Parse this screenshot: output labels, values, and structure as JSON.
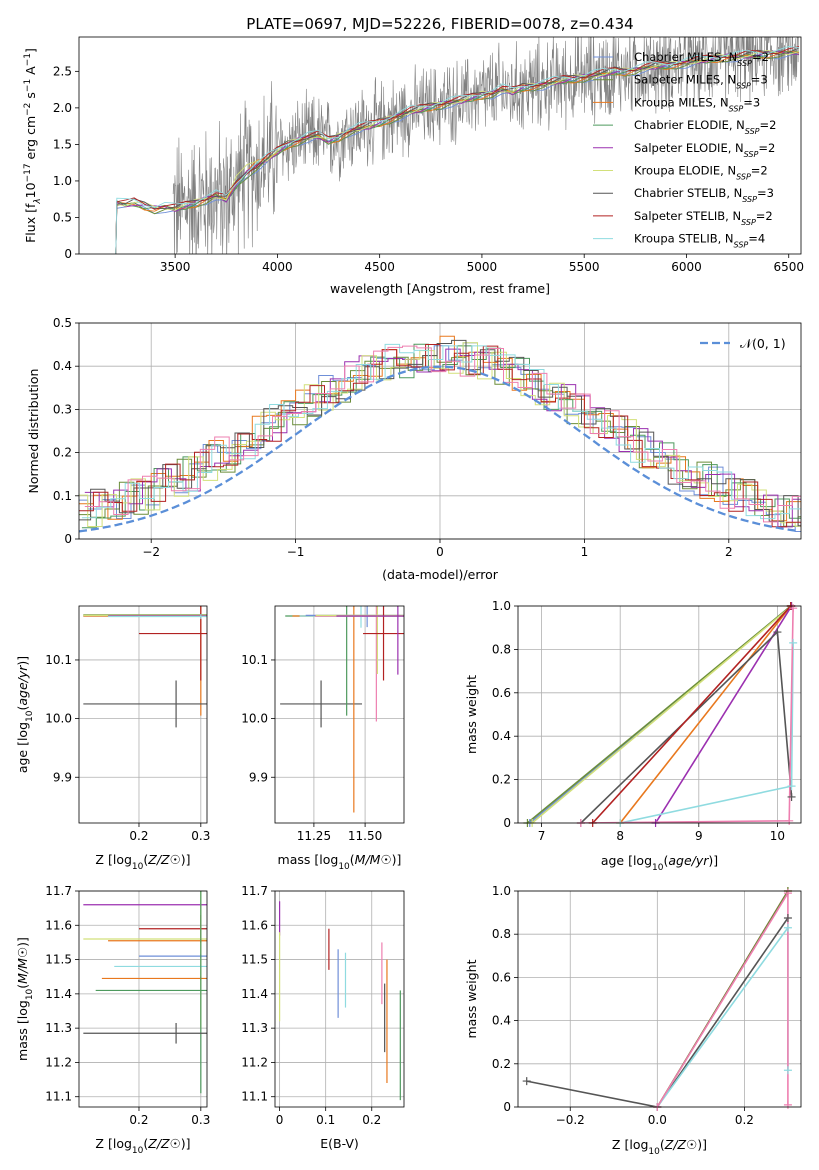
{
  "figure": {
    "title": "PLATE=0697, MJD=52226, FIBERID=0078, z=0.434"
  },
  "colors": {
    "chabrier_miles": "#6f8fd8",
    "salpeter_miles": "#6b8e3a",
    "kroupa_miles": "#e8781e",
    "chabrier_elodie": "#4e9a5e",
    "salpeter_elodie": "#9b30b0",
    "kroupa_elodie": "#d2e07a",
    "chabrier_stelib": "#555555",
    "salpeter_stelib": "#b22222",
    "kroupa_stelib": "#8fdbe0",
    "pink": "#ee7fb0",
    "data_gray": "#808080",
    "normal_curve": "#5b8fd8"
  },
  "chart_data": [
    {
      "id": "spectrum",
      "type": "line",
      "xlabel": "wavelength [Angstrom, rest frame]",
      "ylabel_parts": [
        "Flux [f",
        "λ",
        "10",
        "−17",
        " erg cm",
        "−2",
        " s",
        "−1",
        " A",
        "−1",
        "]"
      ],
      "xlim": [
        3030,
        6560
      ],
      "ylim": [
        0,
        2.97
      ],
      "xticks": [
        3500,
        4000,
        4500,
        5000,
        5500,
        6000,
        6500
      ],
      "yticks": [
        0.0,
        0.5,
        1.0,
        1.5,
        2.0,
        2.5
      ],
      "grid": false,
      "legend_position": "top-right",
      "legend": [
        {
          "name": "Chabrier MILES, N",
          "sub": "SSP",
          "val": "=2",
          "color_key": "chabrier_miles"
        },
        {
          "name": "Salpeter MILES, N",
          "sub": "SSP",
          "val": "=3",
          "color_key": "salpeter_miles"
        },
        {
          "name": "Kroupa MILES, N",
          "sub": "SSP",
          "val": "=3",
          "color_key": "kroupa_miles"
        },
        {
          "name": "Chabrier ELODIE, N",
          "sub": "SSP",
          "val": "=2",
          "color_key": "chabrier_elodie"
        },
        {
          "name": "Salpeter ELODIE, N",
          "sub": "SSP",
          "val": "=2",
          "color_key": "salpeter_elodie"
        },
        {
          "name": "Kroupa ELODIE, N",
          "sub": "SSP",
          "val": "=2",
          "color_key": "kroupa_elodie"
        },
        {
          "name": "Chabrier STELIB, N",
          "sub": "SSP",
          "val": "=3",
          "color_key": "chabrier_stelib"
        },
        {
          "name": "Salpeter STELIB, N",
          "sub": "SSP",
          "val": "=2",
          "color_key": "salpeter_stelib"
        },
        {
          "name": "Kroupa STELIB, N",
          "sub": "SSP",
          "val": "=4",
          "color_key": "kroupa_stelib"
        }
      ],
      "model_continuum": [
        [
          3210,
          0.0
        ],
        [
          3215,
          0.7
        ],
        [
          3260,
          0.68
        ],
        [
          3300,
          0.7
        ],
        [
          3350,
          0.66
        ],
        [
          3400,
          0.62
        ],
        [
          3450,
          0.64
        ],
        [
          3500,
          0.62
        ],
        [
          3550,
          0.66
        ],
        [
          3600,
          0.7
        ],
        [
          3650,
          0.75
        ],
        [
          3700,
          0.8
        ],
        [
          3750,
          0.75
        ],
        [
          3800,
          0.95
        ],
        [
          3850,
          1.1
        ],
        [
          3900,
          1.2
        ],
        [
          3950,
          1.3
        ],
        [
          4000,
          1.4
        ],
        [
          4050,
          1.5
        ],
        [
          4100,
          1.55
        ],
        [
          4150,
          1.6
        ],
        [
          4200,
          1.62
        ],
        [
          4250,
          1.55
        ],
        [
          4300,
          1.6
        ],
        [
          4350,
          1.68
        ],
        [
          4400,
          1.72
        ],
        [
          4450,
          1.75
        ],
        [
          4500,
          1.8
        ],
        [
          4550,
          1.85
        ],
        [
          4600,
          1.9
        ],
        [
          4650,
          1.95
        ],
        [
          4700,
          1.98
        ],
        [
          4750,
          2.02
        ],
        [
          4800,
          2.05
        ],
        [
          4850,
          2.08
        ],
        [
          4900,
          2.1
        ],
        [
          4950,
          2.14
        ],
        [
          5000,
          2.18
        ],
        [
          5050,
          2.2
        ],
        [
          5100,
          2.25
        ],
        [
          5150,
          2.22
        ],
        [
          5200,
          2.28
        ],
        [
          5250,
          2.3
        ],
        [
          5300,
          2.32
        ],
        [
          5350,
          2.35
        ],
        [
          5400,
          2.38
        ],
        [
          5450,
          2.4
        ],
        [
          5500,
          2.42
        ],
        [
          5550,
          2.45
        ],
        [
          5600,
          2.47
        ],
        [
          5650,
          2.5
        ],
        [
          5700,
          2.5
        ],
        [
          5750,
          2.52
        ],
        [
          5800,
          2.55
        ],
        [
          5850,
          2.57
        ],
        [
          5900,
          2.58
        ],
        [
          5950,
          2.6
        ],
        [
          6000,
          2.62
        ],
        [
          6050,
          2.64
        ],
        [
          6100,
          2.66
        ],
        [
          6150,
          2.68
        ],
        [
          6200,
          2.7
        ],
        [
          6250,
          2.7
        ],
        [
          6300,
          2.72
        ],
        [
          6350,
          2.73
        ],
        [
          6400,
          2.74
        ],
        [
          6450,
          2.75
        ],
        [
          6500,
          2.76
        ],
        [
          6550,
          2.77
        ]
      ],
      "data_start": 3490,
      "data_end": 6550
    },
    {
      "id": "residuals",
      "type": "line",
      "xlabel": "(data-model)/error",
      "ylabel": "Normed distribution",
      "xlim": [
        -2.5,
        2.5
      ],
      "ylim": [
        0,
        0.5
      ],
      "xticks": [
        -2,
        -1,
        0,
        1,
        2
      ],
      "xtick_labels": [
        "−2",
        "−1",
        "0",
        "1",
        "2"
      ],
      "yticks": [
        0.0,
        0.1,
        0.2,
        0.3,
        0.4,
        0.5
      ],
      "grid": true,
      "legend_position": "top-right",
      "legend": [
        {
          "name": "𝒩(0, 1)",
          "color_key": "normal_curve",
          "dashed": true
        }
      ],
      "bin_width": 0.1
    },
    {
      "id": "age_vs_Z",
      "type": "scatter",
      "xlabel": "Z [log10(Z/Z☉)]",
      "ylabel": "age  [log10(age/yr)]",
      "xlim": [
        0.103,
        0.31
      ],
      "ylim": [
        9.822,
        10.192
      ],
      "xticks": [
        0.2,
        0.3
      ],
      "yticks": [
        9.9,
        10.0,
        10.1
      ],
      "grid": true,
      "points": [
        {
          "color_key": "chabrier_miles",
          "x": 0.3,
          "xerr": 0.19,
          "y": 10.175,
          "yerr": 0.005
        },
        {
          "color_key": "salpeter_miles",
          "x": 0.3,
          "xerr": 0.19,
          "y": 10.177,
          "yerr": 0.003
        },
        {
          "color_key": "kroupa_miles",
          "x": 0.3,
          "xerr": 0.19,
          "y": 10.175,
          "yerr": 0.17
        },
        {
          "color_key": "kroupa_elodie",
          "x": 0.3,
          "xerr": 0.19,
          "y": 10.176,
          "yerr": 0.005
        },
        {
          "color_key": "salpeter_elodie",
          "x": 0.3,
          "xerr": 0.15,
          "y": 10.175,
          "yerr": 0.004
        },
        {
          "color_key": "chabrier_stelib",
          "x": 0.26,
          "xerr": 0.15,
          "y": 10.025,
          "yerr": 0.04
        },
        {
          "color_key": "salpeter_stelib",
          "x": 0.3,
          "xerr": 0.1,
          "y": 10.145,
          "yerr": 0.08
        },
        {
          "color_key": "kroupa_stelib",
          "x": 0.3,
          "xerr": 0.15,
          "y": 10.174,
          "yerr": 0.004
        }
      ]
    },
    {
      "id": "age_vs_mass",
      "type": "scatter",
      "xlabel": "mass [log10(M/M☉)]",
      "ylabel": "",
      "xlim": [
        11.06,
        11.69
      ],
      "ylim": [
        9.822,
        10.192
      ],
      "xticks": [
        11.25,
        11.5
      ],
      "yticks": [
        9.9,
        10.0,
        10.1
      ],
      "grid": true,
      "points": [
        {
          "color_key": "chabrier_stelib",
          "x": 11.285,
          "xerr": 0.2,
          "y": 10.025,
          "yerr": 0.04
        },
        {
          "color_key": "chabrier_elodie",
          "x": 11.41,
          "xerr": 0.3,
          "y": 10.175,
          "yerr": 0.17
        },
        {
          "color_key": "kroupa_miles",
          "x": 11.445,
          "xerr": 0.3,
          "y": 10.175,
          "yerr": 0.335
        },
        {
          "color_key": "kroupa_stelib",
          "x": 11.48,
          "xerr": 0.3,
          "y": 10.175,
          "yerr": 0.02
        },
        {
          "color_key": "chabrier_miles",
          "x": 11.51,
          "xerr": 0.3,
          "y": 10.176,
          "yerr": 0.02
        },
        {
          "color_key": "pink",
          "x": 11.555,
          "xerr": 0.3,
          "y": 10.175,
          "yerr": 0.18
        },
        {
          "color_key": "kroupa_elodie",
          "x": 11.56,
          "xerr": 0.3,
          "y": 10.176,
          "yerr": 0.1
        },
        {
          "color_key": "salpeter_stelib",
          "x": 11.59,
          "xerr": 0.1,
          "y": 10.145,
          "yerr": 0.08
        },
        {
          "color_key": "salpeter_elodie",
          "x": 11.66,
          "xerr": 0.3,
          "y": 10.175,
          "yerr": 0.1
        }
      ]
    },
    {
      "id": "mass_weight_vs_age",
      "type": "line",
      "xlabel": "age  [log10(age/yr)]",
      "ylabel": "mass weight",
      "xlim": [
        6.7,
        10.3
      ],
      "ylim": [
        0,
        1
      ],
      "xticks": [
        7,
        8,
        9,
        10
      ],
      "yticks": [
        0.0,
        0.2,
        0.4,
        0.6,
        0.8,
        1.0
      ],
      "grid": true,
      "series": [
        {
          "color_key": "chabrier_miles",
          "x": [
            6.85,
            10.17
          ],
          "y": [
            0,
            1
          ]
        },
        {
          "color_key": "salpeter_miles",
          "x": [
            6.82,
            10.17
          ],
          "y": [
            0,
            1
          ]
        },
        {
          "color_key": "kroupa_elodie",
          "x": [
            6.88,
            10.18
          ],
          "y": [
            0,
            1
          ]
        },
        {
          "color_key": "kroupa_miles",
          "x": [
            8.0,
            10.17
          ],
          "y": [
            0,
            1
          ]
        },
        {
          "color_key": "salpeter_elodie",
          "x": [
            8.45,
            10.18
          ],
          "y": [
            0,
            1
          ]
        },
        {
          "color_key": "chabrier_stelib",
          "x": [
            7.5,
            10.0,
            10.18
          ],
          "y": [
            0,
            0.88,
            0.12
          ],
          "markers": true
        },
        {
          "color_key": "salpeter_stelib",
          "x": [
            7.65,
            10.17
          ],
          "y": [
            0,
            1
          ]
        },
        {
          "color_key": "kroupa_stelib",
          "x": [
            8.0,
            10.18,
            10.2
          ],
          "y": [
            0,
            0.17,
            0.83
          ],
          "markers": true
        },
        {
          "color_key": "pink",
          "x": [
            7.5,
            10.15,
            10.2
          ],
          "y": [
            0.0,
            0.01,
            0.99
          ],
          "markers": true
        }
      ]
    },
    {
      "id": "mass_vs_Z",
      "type": "scatter",
      "xlabel": "Z [log10(Z/Z☉)]",
      "ylabel": "mass [log10(M/M☉)]",
      "xlim": [
        0.103,
        0.31
      ],
      "ylim": [
        11.07,
        11.7
      ],
      "xticks": [
        0.2,
        0.3
      ],
      "yticks": [
        11.1,
        11.2,
        11.3,
        11.4,
        11.5,
        11.6,
        11.7
      ],
      "grid": true,
      "points": [
        {
          "color_key": "salpeter_elodie",
          "x": 0.3,
          "xerr": 0.19,
          "y": 11.66,
          "yerr": 0.005
        },
        {
          "color_key": "salpeter_stelib",
          "x": 0.3,
          "xerr": 0.1,
          "y": 11.59,
          "yerr": 0.04
        },
        {
          "color_key": "kroupa_elodie",
          "x": 0.3,
          "xerr": 0.19,
          "y": 11.56,
          "yerr": 0.26
        },
        {
          "color_key": "kroupa_miles",
          "x": 0.3,
          "xerr": 0.15,
          "y": 11.555,
          "yerr": 0.005
        },
        {
          "color_key": "chabrier_miles",
          "x": 0.3,
          "xerr": 0.1,
          "y": 11.51,
          "yerr": 0.005
        },
        {
          "color_key": "kroupa_stelib",
          "x": 0.3,
          "xerr": 0.14,
          "y": 11.48,
          "yerr": 0.005
        },
        {
          "color_key": "kroupa_miles",
          "x": 0.3,
          "xerr": 0.16,
          "y": 11.445,
          "yerr": 0.005
        },
        {
          "color_key": "chabrier_elodie",
          "x": 0.3,
          "xerr": 0.17,
          "y": 11.41,
          "yerr": 0.3
        },
        {
          "color_key": "chabrier_stelib",
          "x": 0.26,
          "xerr": 0.15,
          "y": 11.285,
          "yerr": 0.03
        }
      ]
    },
    {
      "id": "mass_vs_ebv",
      "type": "scatter",
      "xlabel": "E(B-V)",
      "ylabel": "",
      "xlim": [
        -0.01,
        0.27
      ],
      "ylim": [
        11.07,
        11.7
      ],
      "xticks": [
        0.0,
        0.1,
        0.2
      ],
      "yticks": [
        11.1,
        11.2,
        11.3,
        11.4,
        11.5,
        11.6,
        11.7
      ],
      "grid": true,
      "points": [
        {
          "color_key": "salpeter_elodie",
          "x": 0.0,
          "y": 11.62,
          "yerr": 0.05
        },
        {
          "color_key": "kroupa_elodie",
          "x": 0.0,
          "y": 11.45,
          "yerr": 0.13
        },
        {
          "color_key": "salpeter_stelib",
          "x": 0.107,
          "y": 11.53,
          "yerr": 0.06
        },
        {
          "color_key": "chabrier_miles",
          "x": 0.127,
          "y": 11.43,
          "yerr": 0.1
        },
        {
          "color_key": "kroupa_stelib",
          "x": 0.143,
          "y": 11.44,
          "yerr": 0.08
        },
        {
          "color_key": "pink",
          "x": 0.222,
          "y": 11.46,
          "yerr": 0.09
        },
        {
          "color_key": "chabrier_stelib",
          "x": 0.228,
          "y": 11.33,
          "yerr": 0.1
        },
        {
          "color_key": "kroupa_miles",
          "x": 0.233,
          "y": 11.32,
          "yerr": 0.18
        },
        {
          "color_key": "chabrier_elodie",
          "x": 0.262,
          "y": 11.25,
          "yerr": 0.16
        }
      ]
    },
    {
      "id": "mass_weight_vs_Z",
      "type": "line",
      "xlabel": "Z [log10(Z/Z☉)]",
      "ylabel": "mass weight",
      "xlim": [
        -0.32,
        0.33
      ],
      "ylim": [
        0,
        1
      ],
      "xticks": [
        -0.2,
        0.0,
        0.2
      ],
      "xtick_labels": [
        "−0.2",
        "0.0",
        "0.2"
      ],
      "yticks": [
        0.0,
        0.2,
        0.4,
        0.6,
        0.8,
        1.0
      ],
      "grid": true,
      "series": [
        {
          "color_key": "salpeter_stelib",
          "x": [
            0.0,
            0.3
          ],
          "y": [
            0,
            1
          ]
        },
        {
          "color_key": "salpeter_miles",
          "x": [
            0.0,
            0.3
          ],
          "y": [
            0,
            1
          ]
        },
        {
          "color_key": "chabrier_stelib",
          "x": [
            -0.3,
            0.0,
            0.3
          ],
          "y": [
            0.12,
            0.0,
            0.875
          ],
          "markers": true
        },
        {
          "color_key": "kroupa_stelib",
          "x": [
            0.0,
            0.3,
            0.3
          ],
          "y": [
            0,
            0.83,
            0.17
          ],
          "markers": true
        },
        {
          "color_key": "pink",
          "x": [
            0.0,
            0.3,
            0.3
          ],
          "y": [
            0,
            0.99,
            0.01
          ],
          "markers": true
        }
      ]
    }
  ]
}
